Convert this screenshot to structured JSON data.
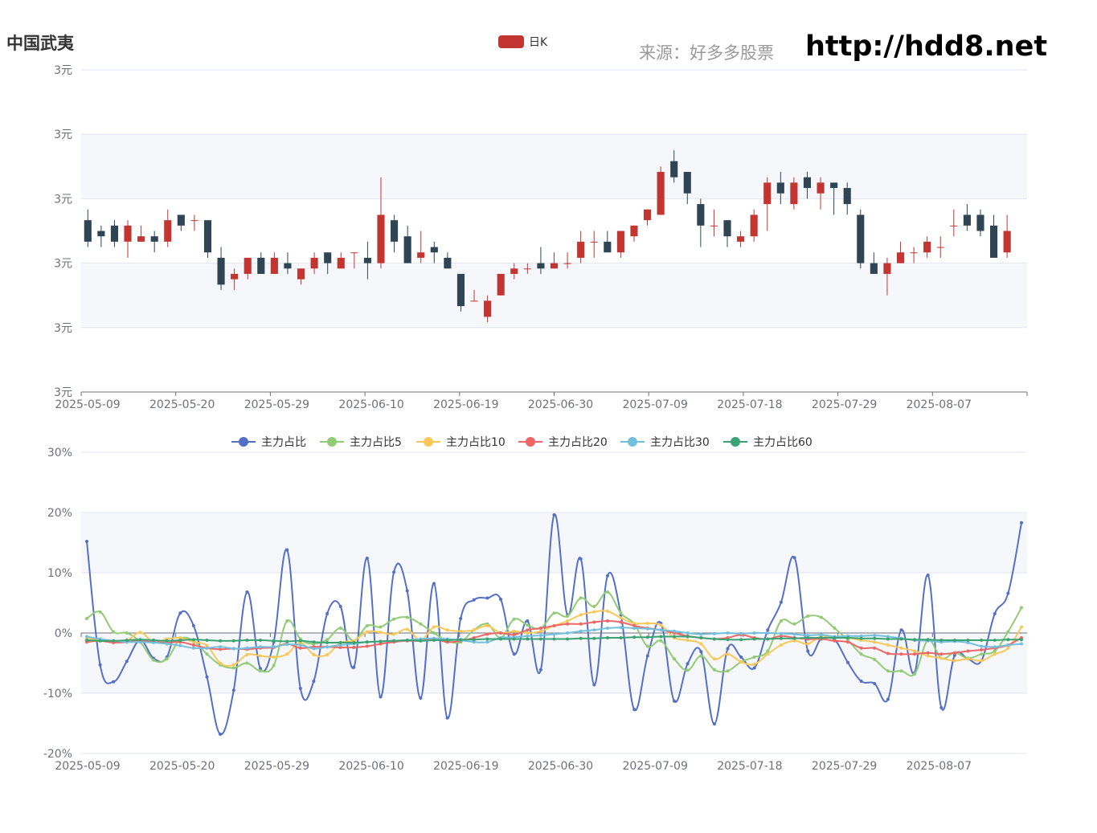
{
  "header": {
    "title": "中国武夷",
    "source": "来源：好多多股票",
    "site": "http://hdd8.net"
  },
  "colors": {
    "up": "#c23531",
    "down": "#2f4554",
    "band": "#f6f7fb",
    "grid": "#e0e6f1",
    "axis": "#6e7079"
  },
  "chart_data": [
    {
      "type": "candlestick",
      "legend": [
        "日K"
      ],
      "y_ticks": [
        "3元",
        "3元",
        "3元",
        "3元",
        "3元",
        "3元"
      ],
      "ylim": [
        2.64,
        3.24
      ],
      "x_ticks": [
        "2025-05-09",
        "2025-05-20",
        "2025-05-29",
        "2025-06-10",
        "2025-06-19",
        "2025-06-30",
        "2025-07-09",
        "2025-07-18",
        "2025-07-29",
        "2025-08-07"
      ],
      "candles": [
        [
          2.96,
          2.92,
          2.98,
          2.91
        ],
        [
          2.94,
          2.93,
          2.95,
          2.91
        ],
        [
          2.95,
          2.92,
          2.96,
          2.91
        ],
        [
          2.92,
          2.95,
          2.96,
          2.89
        ],
        [
          2.92,
          2.93,
          2.95,
          2.92
        ],
        [
          2.93,
          2.92,
          2.94,
          2.9
        ],
        [
          2.92,
          2.96,
          2.98,
          2.91
        ],
        [
          2.97,
          2.95,
          2.97,
          2.94
        ],
        [
          2.96,
          2.96,
          2.97,
          2.94
        ],
        [
          2.96,
          2.9,
          2.96,
          2.89
        ],
        [
          2.89,
          2.84,
          2.91,
          2.83
        ],
        [
          2.85,
          2.86,
          2.87,
          2.83
        ],
        [
          2.86,
          2.89,
          2.89,
          2.85
        ],
        [
          2.89,
          2.86,
          2.9,
          2.86
        ],
        [
          2.86,
          2.89,
          2.9,
          2.86
        ],
        [
          2.88,
          2.87,
          2.9,
          2.86
        ],
        [
          2.85,
          2.87,
          2.87,
          2.84
        ],
        [
          2.87,
          2.89,
          2.9,
          2.86
        ],
        [
          2.9,
          2.88,
          2.9,
          2.86
        ],
        [
          2.87,
          2.89,
          2.9,
          2.87
        ],
        [
          2.9,
          2.9,
          2.9,
          2.87
        ],
        [
          2.89,
          2.88,
          2.92,
          2.85
        ],
        [
          2.88,
          2.97,
          3.04,
          2.87
        ],
        [
          2.96,
          2.92,
          2.97,
          2.9
        ],
        [
          2.93,
          2.88,
          2.95,
          2.88
        ],
        [
          2.89,
          2.9,
          2.94,
          2.88
        ],
        [
          2.91,
          2.9,
          2.92,
          2.88
        ],
        [
          2.89,
          2.87,
          2.9,
          2.87
        ],
        [
          2.86,
          2.8,
          2.86,
          2.79
        ],
        [
          2.81,
          2.81,
          2.83,
          2.81
        ],
        [
          2.78,
          2.81,
          2.82,
          2.77
        ],
        [
          2.82,
          2.86,
          2.86,
          2.82
        ],
        [
          2.86,
          2.87,
          2.88,
          2.85
        ],
        [
          2.87,
          2.87,
          2.88,
          2.86
        ],
        [
          2.88,
          2.87,
          2.91,
          2.86
        ],
        [
          2.87,
          2.88,
          2.9,
          2.87
        ],
        [
          2.88,
          2.88,
          2.9,
          2.87
        ],
        [
          2.89,
          2.92,
          2.94,
          2.88
        ],
        [
          2.92,
          2.92,
          2.94,
          2.89
        ],
        [
          2.92,
          2.9,
          2.94,
          2.9
        ],
        [
          2.9,
          2.94,
          2.94,
          2.89
        ],
        [
          2.93,
          2.95,
          2.95,
          2.92
        ],
        [
          2.96,
          2.98,
          2.98,
          2.95
        ],
        [
          2.97,
          3.05,
          3.06,
          2.97
        ],
        [
          3.07,
          3.04,
          3.09,
          3.03
        ],
        [
          3.05,
          3.01,
          3.05,
          2.99
        ],
        [
          2.99,
          2.95,
          3.0,
          2.91
        ],
        [
          2.95,
          2.95,
          2.98,
          2.93
        ],
        [
          2.96,
          2.93,
          2.96,
          2.91
        ],
        [
          2.92,
          2.93,
          2.94,
          2.91
        ],
        [
          2.93,
          2.97,
          2.98,
          2.92
        ],
        [
          2.99,
          3.03,
          3.04,
          2.94
        ],
        [
          3.03,
          3.01,
          3.05,
          2.99
        ],
        [
          2.99,
          3.03,
          3.04,
          2.98
        ],
        [
          3.04,
          3.02,
          3.05,
          3.0
        ],
        [
          3.01,
          3.03,
          3.04,
          2.98
        ],
        [
          3.03,
          3.02,
          3.03,
          2.97
        ],
        [
          3.02,
          2.99,
          3.03,
          2.97
        ],
        [
          2.97,
          2.88,
          2.98,
          2.87
        ],
        [
          2.88,
          2.86,
          2.9,
          2.86
        ],
        [
          2.86,
          2.88,
          2.89,
          2.82
        ],
        [
          2.88,
          2.9,
          2.92,
          2.88
        ],
        [
          2.9,
          2.9,
          2.91,
          2.88
        ],
        [
          2.9,
          2.92,
          2.93,
          2.89
        ],
        [
          2.91,
          2.91,
          2.93,
          2.89
        ],
        [
          2.95,
          2.95,
          2.98,
          2.93
        ],
        [
          2.97,
          2.95,
          2.99,
          2.94
        ],
        [
          2.97,
          2.94,
          2.98,
          2.93
        ],
        [
          2.95,
          2.89,
          2.97,
          2.89
        ],
        [
          2.9,
          2.94,
          2.97,
          2.89
        ]
      ]
    },
    {
      "type": "line",
      "y_ticks": [
        "30%",
        "20%",
        "10%",
        "0%",
        "-10%",
        "-20%"
      ],
      "ylim": [
        -20,
        30
      ],
      "x_ticks": [
        "2025-05-09",
        "2025-05-20",
        "2025-05-29",
        "2025-06-10",
        "2025-06-19",
        "2025-06-30",
        "2025-07-09",
        "2025-07-18",
        "2025-07-29",
        "2025-08-07"
      ],
      "series": [
        {
          "name": "主力占比",
          "color": "#5470c6",
          "values": [
            15.2,
            -5.3,
            -8.1,
            -4.7,
            -1.2,
            -4.2,
            -4.0,
            3.3,
            1.2,
            -7.3,
            -16.8,
            -9.5,
            6.8,
            -5.9,
            -1.5,
            13.8,
            -9.2,
            -8.0,
            3.2,
            4.4,
            -5.7,
            12.4,
            -10.6,
            10.1,
            7.0,
            -10.8,
            8.2,
            -14.1,
            2.4,
            5.5,
            5.8,
            5.6,
            -3.5,
            2.0,
            -6.1,
            19.6,
            3.0,
            12.3,
            -8.6,
            9.5,
            3.0,
            -12.7,
            -3.8,
            1.6,
            -11.3,
            -5.1,
            -3.1,
            -15.1,
            -2.6,
            -4.0,
            -5.8,
            0.5,
            5.1,
            12.5,
            -3.0,
            -1.0,
            -1.1,
            -4.9,
            -8.0,
            -8.4,
            -11.0,
            0.5,
            -6.6,
            9.6,
            -12.4,
            -3.7,
            -4.3,
            -4.6,
            3.2,
            6.6,
            18.3
          ]
        },
        {
          "name": "主力占比5",
          "color": "#91cc75",
          "values": [
            2.4,
            3.5,
            0.2,
            0.0,
            -1.5,
            -4.5,
            -4.3,
            -1.0,
            -1.3,
            -3.5,
            -5.3,
            -5.8,
            -5.0,
            -6.3,
            -5.4,
            2.0,
            -1.0,
            -1.8,
            -1.1,
            0.8,
            -1.3,
            1.2,
            1.0,
            2.3,
            2.6,
            1.5,
            0.0,
            -1.3,
            -1.5,
            0.5,
            1.5,
            -0.8,
            2.3,
            1.3,
            0.8,
            3.3,
            2.8,
            5.8,
            4.4,
            6.8,
            3.3,
            1.5,
            -2.2,
            -1.3,
            -4.3,
            -6.2,
            -3.8,
            -6.1,
            -6.3,
            -4.8,
            -4.0,
            -3.0,
            2.0,
            1.5,
            2.8,
            2.6,
            0.8,
            -1.2,
            -3.5,
            -4.4,
            -6.3,
            -6.3,
            -6.8,
            -1.2,
            -4.2,
            -3.3,
            -4.2,
            -3.5,
            -3.0,
            0.2,
            4.2
          ]
        },
        {
          "name": "主力占比10",
          "color": "#fac858",
          "values": [
            -0.8,
            -1.3,
            -1.5,
            -1.3,
            0.1,
            -1.5,
            -1.0,
            -0.8,
            -1.5,
            -2.1,
            -5.0,
            -5.3,
            -3.6,
            -3.8,
            -4.0,
            -3.5,
            -1.6,
            -3.6,
            -3.6,
            -1.6,
            -1.3,
            0.2,
            0.1,
            -0.2,
            0.6,
            -1.2,
            1.0,
            0.5,
            0.3,
            0.5,
            1.2,
            0.0,
            0.3,
            0.0,
            0.3,
            1.2,
            2.0,
            3.0,
            3.5,
            3.6,
            2.5,
            1.6,
            1.6,
            1.3,
            -0.8,
            -1.2,
            -1.8,
            -4.3,
            -3.5,
            -4.8,
            -5.2,
            -3.5,
            -2.0,
            -1.3,
            -1.8,
            -0.5,
            -0.8,
            -0.8,
            -1.2,
            -1.5,
            -2.0,
            -2.5,
            -3.0,
            -3.8,
            -4.2,
            -4.6,
            -4.3,
            -4.6,
            -3.5,
            -2.5,
            1.0
          ]
        },
        {
          "name": "主力占比20",
          "color": "#ee6666",
          "values": [
            -1.5,
            -1.3,
            -1.6,
            -1.5,
            -1.3,
            -1.5,
            -1.6,
            -1.5,
            -2.0,
            -2.5,
            -2.7,
            -2.6,
            -2.7,
            -2.5,
            -2.4,
            -1.8,
            -2.5,
            -2.3,
            -2.3,
            -2.4,
            -2.4,
            -2.2,
            -1.8,
            -1.5,
            -1.3,
            -1.3,
            -1.0,
            -1.5,
            -1.3,
            -0.8,
            -0.2,
            0.0,
            -0.3,
            0.5,
            0.8,
            1.2,
            1.5,
            1.5,
            1.8,
            2.0,
            1.8,
            1.2,
            0.8,
            0.5,
            0.0,
            -0.5,
            -0.8,
            -1.0,
            -0.8,
            -0.3,
            -0.8,
            -1.0,
            -0.5,
            -0.8,
            -1.0,
            -1.0,
            -1.3,
            -1.5,
            -2.5,
            -2.5,
            -3.4,
            -3.5,
            -3.5,
            -3.3,
            -3.5,
            -3.3,
            -3.0,
            -2.8,
            -2.5,
            -2.0,
            -0.8
          ]
        },
        {
          "name": "主力占比30",
          "color": "#73c0de",
          "values": [
            -0.6,
            -1.0,
            -1.3,
            -1.5,
            -1.5,
            -1.6,
            -1.8,
            -2.1,
            -2.5,
            -2.5,
            -2.3,
            -2.6,
            -2.5,
            -2.3,
            -2.3,
            -1.9,
            -2.0,
            -2.6,
            -2.3,
            -2.0,
            -1.8,
            -1.5,
            -1.4,
            -1.3,
            -1.2,
            -1.0,
            -0.9,
            -1.0,
            -1.2,
            -1.5,
            -1.5,
            -0.8,
            -0.7,
            -0.5,
            -0.4,
            -0.2,
            0.0,
            0.3,
            0.5,
            0.8,
            0.9,
            0.8,
            0.7,
            0.5,
            0.3,
            0.0,
            -0.2,
            -0.1,
            0.0,
            -0.1,
            0.0,
            0.0,
            -0.1,
            -0.2,
            -0.4,
            -0.3,
            -0.6,
            -0.5,
            -0.5,
            -0.4,
            -0.6,
            -0.9,
            -1.2,
            -1.3,
            -1.5,
            -1.4,
            -1.6,
            -2.2,
            -2.3,
            -2.0,
            -1.8
          ]
        },
        {
          "name": "主力占比60",
          "color": "#3ba272",
          "values": [
            -1.2,
            -1.3,
            -1.3,
            -1.2,
            -1.1,
            -1.2,
            -1.3,
            -1.2,
            -1.1,
            -1.2,
            -1.3,
            -1.3,
            -1.2,
            -1.2,
            -1.3,
            -1.4,
            -1.3,
            -1.5,
            -1.6,
            -1.6,
            -1.6,
            -1.5,
            -1.4,
            -1.3,
            -1.2,
            -1.3,
            -1.2,
            -1.2,
            -1.1,
            -1.1,
            -1.0,
            -1.0,
            -1.0,
            -1.0,
            -1.0,
            -1.0,
            -1.0,
            -0.9,
            -0.9,
            -0.8,
            -0.8,
            -0.7,
            -0.7,
            -0.6,
            -0.6,
            -0.6,
            -0.8,
            -1.0,
            -1.1,
            -1.1,
            -1.0,
            -1.0,
            -0.9,
            -0.9,
            -0.8,
            -0.8,
            -0.8,
            -0.8,
            -0.9,
            -0.9,
            -1.0,
            -1.0,
            -1.1,
            -1.1,
            -1.2,
            -1.2,
            -1.2,
            -1.2,
            -1.2,
            -1.1,
            -1.1
          ]
        }
      ]
    }
  ]
}
